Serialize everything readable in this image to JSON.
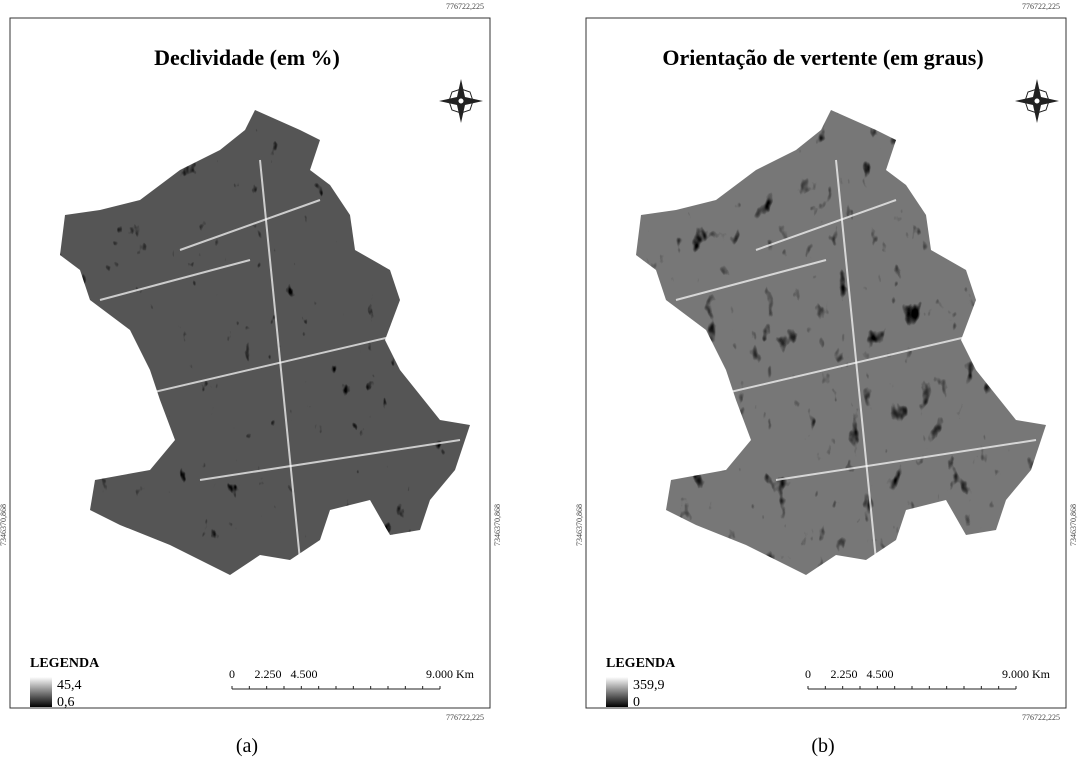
{
  "panels": [
    {
      "title": "Declividade (em %)",
      "coord_top": "776722,225",
      "coord_left": "7346370,868",
      "coord_right": "7346370,868",
      "coord_bottom": "776722,225",
      "legend": {
        "title": "LEGENDA",
        "max": "45,4",
        "min": "0,6"
      },
      "scale": [
        "0",
        "2.250",
        "4.500",
        "9.000 Km"
      ],
      "caption": "(a)"
    },
    {
      "title": "Orientação de vertente (em graus)",
      "coord_top": "776722,225",
      "coord_left": "7346370,868",
      "coord_right": "7346370,868",
      "coord_bottom": "776722,225",
      "legend": {
        "title": "LEGENDA",
        "max": "359,9",
        "min": "0"
      },
      "scale": [
        "0",
        "2.250",
        "4.500",
        "9.000 Km"
      ],
      "caption": "(b)"
    }
  ]
}
